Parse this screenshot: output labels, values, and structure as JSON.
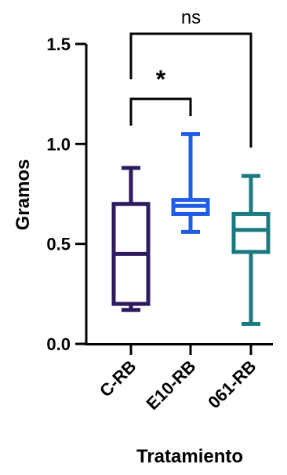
{
  "chart_data": {
    "type": "box",
    "xlabel": "Tratamiento",
    "ylabel": "Gramos",
    "ylim": [
      0,
      1.5
    ],
    "yticks": [
      "0.0",
      "0.5",
      "1.0",
      "1.5"
    ],
    "categories": [
      "C-RB",
      "E10-RB",
      "061-RB"
    ],
    "boxes": [
      {
        "name": "C-RB",
        "color": "#2e1a5c",
        "min": 0.17,
        "q1": 0.2,
        "median": 0.45,
        "q3": 0.7,
        "max": 0.88
      },
      {
        "name": "E10-RB",
        "color": "#1f5ce6",
        "min": 0.56,
        "q1": 0.65,
        "median": 0.69,
        "q3": 0.72,
        "max": 1.05
      },
      {
        "name": "061-RB",
        "color": "#1b7a80",
        "min": 0.1,
        "q1": 0.46,
        "median": 0.57,
        "q3": 0.65,
        "max": 0.84
      }
    ],
    "significance": [
      {
        "from": "C-RB",
        "to": "E10-RB",
        "label": "*"
      },
      {
        "from": "C-RB",
        "to": "061-RB",
        "label": "ns"
      }
    ]
  }
}
